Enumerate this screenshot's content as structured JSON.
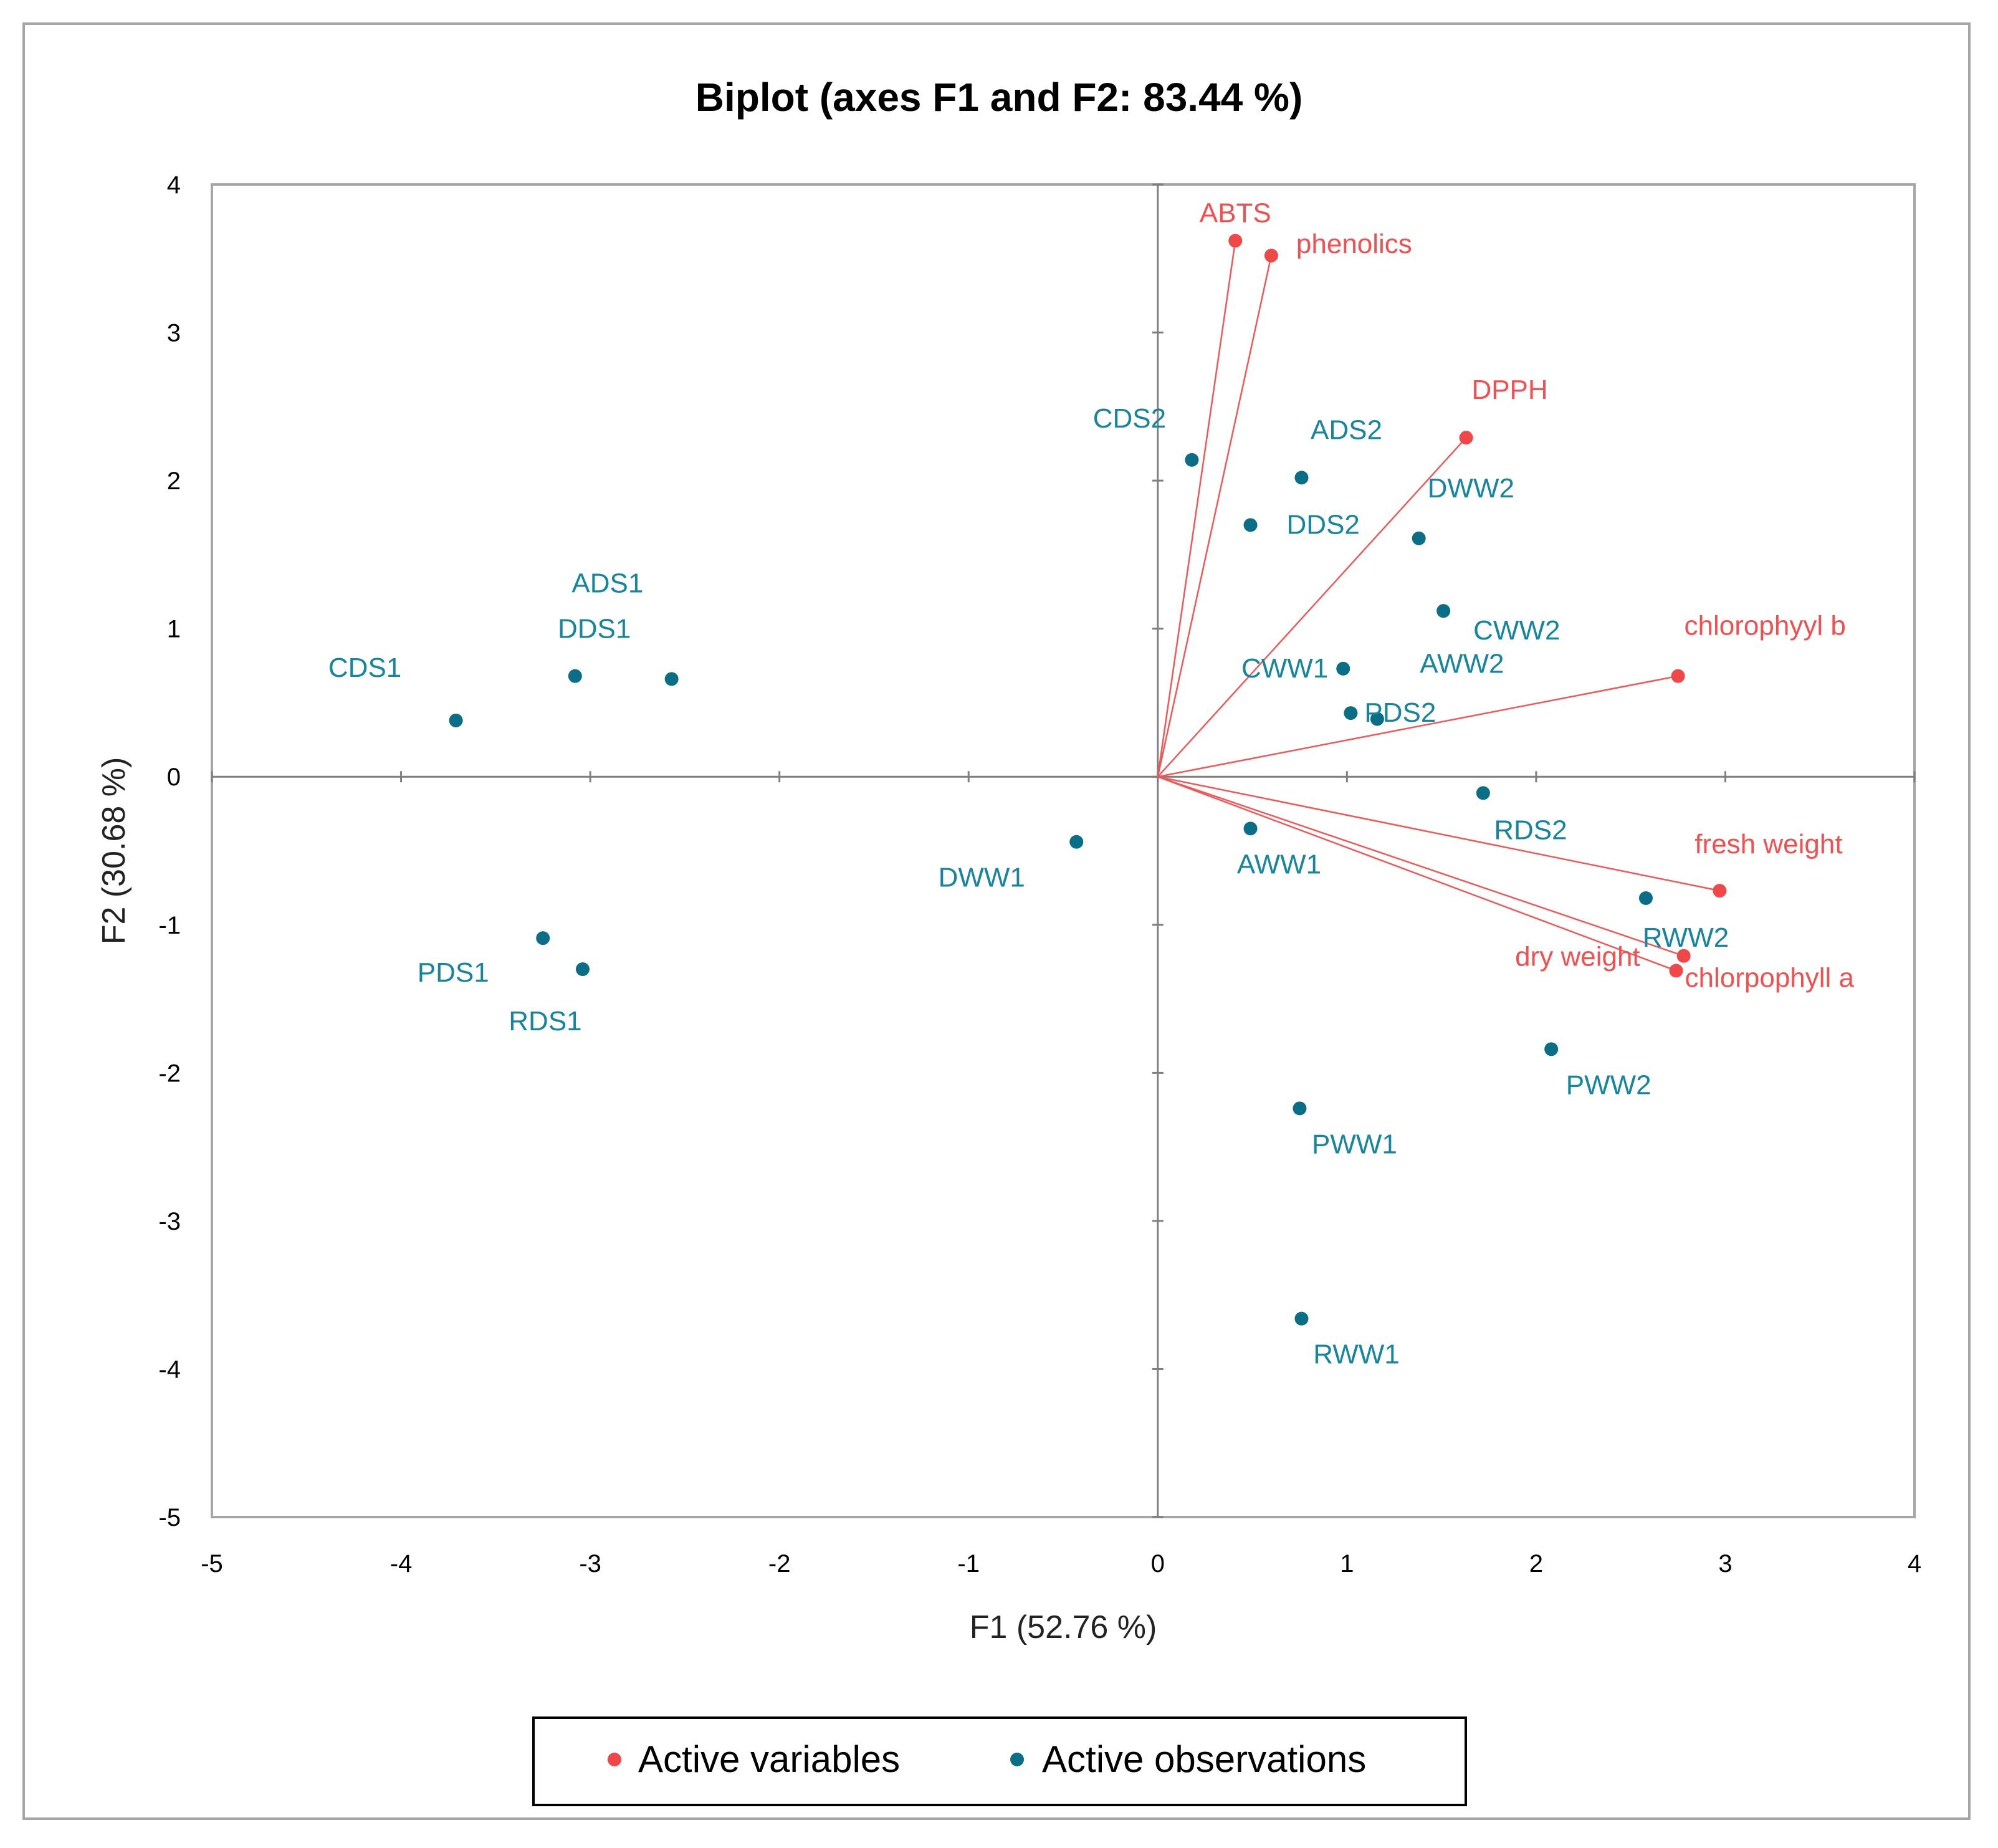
{
  "chart_data": {
    "type": "scatter",
    "title": "Biplot (axes F1 and F2: 83.44 %)",
    "xlabel": "F1 (52.76 %)",
    "ylabel": "F2 (30.68 %)",
    "xlim": [
      -5,
      4
    ],
    "ylim": [
      -5,
      4
    ],
    "xticks": [
      "-5",
      "-4",
      "-3",
      "-2",
      "-1",
      "0",
      "1",
      "2",
      "3",
      "4"
    ],
    "yticks": [
      "-5",
      "-4",
      "-3",
      "-2",
      "-1",
      "0",
      "1",
      "2",
      "3",
      "4"
    ],
    "legend": {
      "position": "bottom",
      "entries": [
        "Active variables",
        "Active observations"
      ]
    },
    "colors": {
      "variables": "#f04848",
      "observations": "#0b6e87"
    },
    "series": [
      {
        "name": "Active variables",
        "points": [
          {
            "label": "ABTS",
            "x": 0.41,
            "y": 3.62
          },
          {
            "label": "phenolics",
            "x": 0.6,
            "y": 3.52
          },
          {
            "label": "DPPH",
            "x": 1.63,
            "y": 2.29
          },
          {
            "label": "chlorophyyl b",
            "x": 2.75,
            "y": 0.68
          },
          {
            "label": "fresh weight",
            "x": 2.97,
            "y": -0.77
          },
          {
            "label": "dry weight",
            "x": 2.78,
            "y": -1.21
          },
          {
            "label": "chlorpophyll a",
            "x": 2.74,
            "y": -1.31
          }
        ]
      },
      {
        "name": "Active observations",
        "points": [
          {
            "label": "CDS2",
            "x": 0.18,
            "y": 2.14
          },
          {
            "label": "ADS2",
            "x": 0.76,
            "y": 2.02
          },
          {
            "label": "DDS2",
            "x": 0.49,
            "y": 1.7
          },
          {
            "label": "DWW2",
            "x": 1.38,
            "y": 1.61
          },
          {
            "label": "CWW2",
            "x": 1.51,
            "y": 1.12
          },
          {
            "label": "CWW1",
            "x": 0.98,
            "y": 0.73
          },
          {
            "label": "PDS2",
            "x": 1.02,
            "y": 0.43
          },
          {
            "label": "AWW2",
            "x": 1.16,
            "y": 0.39
          },
          {
            "label": "RDS2",
            "x": 1.72,
            "y": -0.11
          },
          {
            "label": "AWW1",
            "x": 0.49,
            "y": -0.35
          },
          {
            "label": "RWW2",
            "x": 2.58,
            "y": -0.82
          },
          {
            "label": "PWW2",
            "x": 2.08,
            "y": -1.84
          },
          {
            "label": "PWW1",
            "x": 0.75,
            "y": -2.24
          },
          {
            "label": "RWW1",
            "x": 0.76,
            "y": -3.66
          },
          {
            "label": "DWW1",
            "x": -0.43,
            "y": -0.44
          },
          {
            "label": "CDS1",
            "x": -3.71,
            "y": 0.38
          },
          {
            "label": "ADS1",
            "x": -3.08,
            "y": 0.68
          },
          {
            "label": "DDS1",
            "x": -2.57,
            "y": 0.66
          },
          {
            "label": "PDS1",
            "x": -3.25,
            "y": -1.09
          },
          {
            "label": "RDS1",
            "x": -3.04,
            "y": -1.3
          }
        ]
      }
    ]
  }
}
